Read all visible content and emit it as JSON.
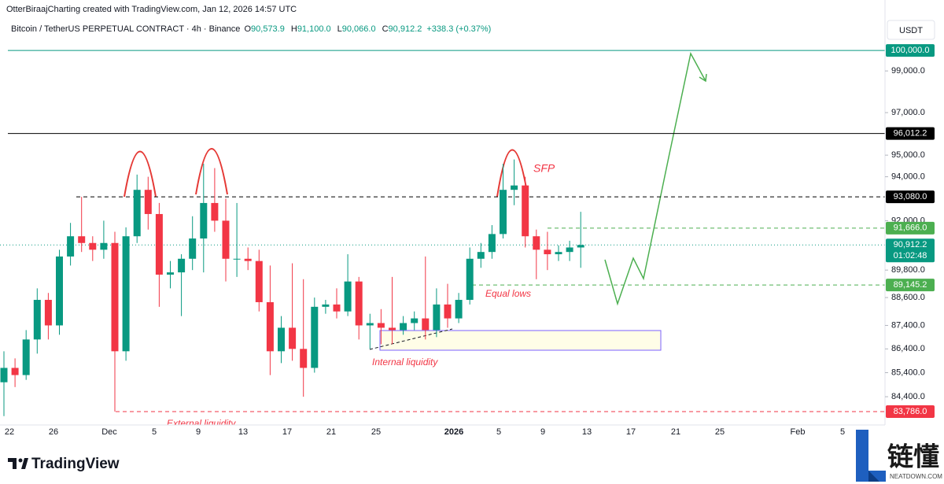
{
  "header": {
    "attribution": "OtterBiraajCharting created with TradingView.com, Jan 12, 2026 14:57 UTC",
    "symbol": "Bitcoin / TetherUS PERPETUAL CONTRACT · 4h · Binance",
    "ohlc": [
      {
        "key": "O",
        "value": "90,573.9"
      },
      {
        "key": "H",
        "value": "91,100.0"
      },
      {
        "key": "L",
        "value": "90,066.0"
      },
      {
        "key": "C",
        "value": "90,912.2"
      }
    ],
    "change": "+338.3 (+0.37%)",
    "currency": "USDT"
  },
  "chart_data": {
    "type": "candlestick",
    "log_scale": true,
    "grid": false,
    "up_color": "#089981",
    "down_color": "#f23645",
    "ylim": [
      83240,
      100350
    ],
    "yticks": [
      {
        "value": 99000,
        "label": "99,000.0"
      },
      {
        "value": 97000,
        "label": "97,000.0"
      },
      {
        "value": 95000,
        "label": "95,000.0"
      },
      {
        "value": 94000,
        "label": "94,000.0"
      },
      {
        "value": 92000,
        "label": "92,000.0"
      },
      {
        "value": 89800,
        "label": "89,800.0"
      },
      {
        "value": 88600,
        "label": "88,600.0"
      },
      {
        "value": 87400,
        "label": "87,400.0"
      },
      {
        "value": 86400,
        "label": "86,400.0"
      },
      {
        "value": 85400,
        "label": "85,400.0"
      },
      {
        "value": 84400,
        "label": "84,400.0"
      }
    ],
    "xtick_labels": [
      "22",
      "26",
      "Dec",
      "5",
      "9",
      "13",
      "17",
      "21",
      "25",
      "2026",
      "5",
      "9",
      "13",
      "17",
      "21",
      "25",
      "Feb",
      "5"
    ],
    "open": [
      85000,
      85600,
      85300,
      86800,
      88500,
      87400,
      90400,
      91300,
      91000,
      90700,
      91000,
      86300,
      91300,
      93400,
      92300,
      89600,
      89700,
      90300,
      91200,
      92800,
      92000,
      90300,
      90300,
      90200,
      88400,
      86300,
      87300,
      86400,
      85600,
      88200,
      88300,
      88000,
      89300,
      87400,
      87500,
      87300,
      87200,
      87500,
      87700,
      87200,
      88300,
      87700,
      88500,
      90300,
      90600,
      91400,
      93400,
      93600,
      91300,
      90700,
      90500,
      90600,
      90800
    ],
    "high": [
      86300,
      86000,
      87200,
      89000,
      88800,
      90700,
      91900,
      93080,
      91300,
      92000,
      91500,
      91700,
      94100,
      94000,
      92800,
      90200,
      90500,
      92200,
      94600,
      94400,
      93000,
      92800,
      90800,
      90700,
      90000,
      87800,
      90100,
      89400,
      88600,
      88500,
      89000,
      90500,
      89500,
      87900,
      88100,
      89500,
      87800,
      88000,
      90400,
      89000,
      89200,
      88800,
      90800,
      91000,
      91800,
      94600,
      94800,
      94000,
      91600,
      91500,
      90900,
      91100,
      92400
    ],
    "low": [
      83600,
      84800,
      85100,
      86200,
      86800,
      87000,
      90000,
      90600,
      90200,
      90300,
      83786,
      85900,
      91000,
      91600,
      88200,
      89000,
      87800,
      89800,
      89700,
      91500,
      89300,
      89500,
      89800,
      88000,
      85300,
      85800,
      85900,
      84400,
      85400,
      87900,
      87700,
      87800,
      86800,
      86400,
      86600,
      86600,
      87000,
      87200,
      86800,
      86900,
      87300,
      87500,
      88300,
      89900,
      90300,
      91200,
      92700,
      90800,
      89400,
      89800,
      90200,
      90200,
      89900
    ],
    "close": [
      85600,
      85300,
      86800,
      88500,
      87400,
      90400,
      91300,
      91000,
      90700,
      91000,
      86300,
      91300,
      93400,
      92300,
      89600,
      89700,
      90300,
      91200,
      92800,
      92000,
      90300,
      90300,
      90200,
      88400,
      86300,
      87300,
      86400,
      85600,
      88200,
      88300,
      88000,
      89300,
      87400,
      87500,
      87300,
      87200,
      87500,
      87700,
      87200,
      88300,
      87700,
      88500,
      90300,
      90600,
      91400,
      93400,
      93600,
      91300,
      90700,
      90500,
      90600,
      90800,
      90912.2
    ],
    "levels": [
      {
        "value": 100000,
        "label": "100,000.0",
        "color": "#089981",
        "style": "solid"
      },
      {
        "value": 96012.2,
        "label": "96,012.2",
        "color": "#000000",
        "style": "solid"
      },
      {
        "value": 93080,
        "label": "93,080.0",
        "color": "#000000",
        "style": "dashed"
      },
      {
        "value": 91666,
        "label": "91,666.0",
        "color": "#4caf50",
        "style": "dashed"
      },
      {
        "value": 90912.2,
        "label": "90,912.2",
        "sublabel": "01:02:48",
        "color": "#089981",
        "style": "dotted"
      },
      {
        "value": 89145.2,
        "label": "89,145.2",
        "color": "#4caf50",
        "style": "dashed"
      },
      {
        "value": 83786,
        "label": "83,786.0",
        "color": "#f23645",
        "style": "dashed"
      }
    ],
    "annotations": [
      {
        "text": "SFP",
        "color": "#f23645"
      },
      {
        "text": "Equal lows",
        "color": "#f23645"
      },
      {
        "text": "Internal liquidity",
        "color": "#f23645"
      },
      {
        "text": "External liquidity",
        "color": "#f23645"
      }
    ]
  },
  "branding": {
    "logo": "TradingView",
    "watermark": "链懂",
    "watermark_sub": "NEATDOWN.COM"
  }
}
